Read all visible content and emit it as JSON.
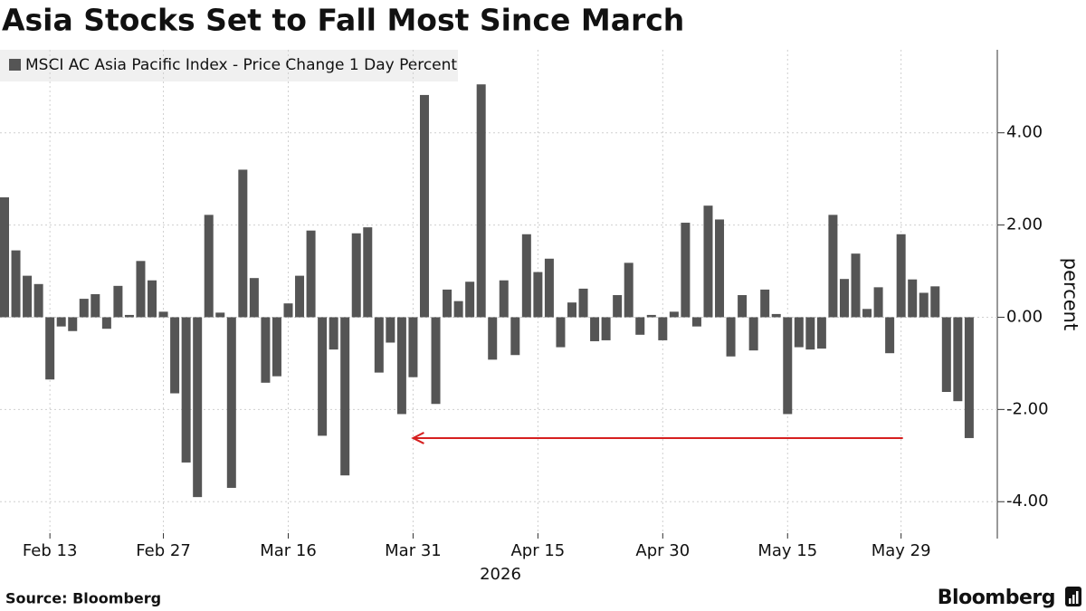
{
  "chart_data": {
    "type": "bar",
    "title": "Asia Stocks Set to Fall Most Since March",
    "y_label": "percent",
    "x_year": "2026",
    "source": "Source: Bloomberg",
    "brand": "Bloomberg",
    "categories": [
      null,
      null,
      null,
      null,
      "Feb 13",
      null,
      null,
      null,
      null,
      null,
      null,
      null,
      null,
      null,
      "Feb 27",
      null,
      null,
      null,
      null,
      null,
      null,
      null,
      null,
      null,
      null,
      "Mar 16",
      null,
      null,
      null,
      null,
      null,
      null,
      null,
      null,
      null,
      null,
      "Mar 31",
      null,
      null,
      null,
      null,
      null,
      null,
      null,
      null,
      null,
      null,
      "Apr 15",
      null,
      null,
      null,
      null,
      null,
      null,
      null,
      null,
      null,
      null,
      "Apr 30",
      null,
      null,
      null,
      null,
      null,
      null,
      null,
      null,
      null,
      null,
      "May 15",
      null,
      null,
      null,
      null,
      null,
      null,
      null,
      null,
      null,
      "May 29",
      null,
      null,
      null,
      null,
      null,
      null
    ],
    "series": [
      {
        "name": "MSCI AC Asia Pacific Index - Price Change 1 Day Percent",
        "color": "#555555",
        "values": [
          2.6,
          1.45,
          0.9,
          0.72,
          -1.35,
          -0.2,
          -0.3,
          0.4,
          0.5,
          -0.25,
          0.68,
          0.05,
          1.22,
          0.8,
          0.12,
          -1.65,
          -3.15,
          -3.9,
          2.22,
          0.1,
          -3.7,
          3.2,
          0.85,
          -1.42,
          -1.28,
          0.3,
          0.9,
          1.88,
          -2.57,
          -0.7,
          -3.43,
          1.82,
          1.95,
          -1.2,
          -0.55,
          -2.1,
          -1.3,
          4.82,
          -1.88,
          0.6,
          0.35,
          0.77,
          5.05,
          -0.92,
          0.8,
          -0.82,
          1.8,
          0.98,
          1.27,
          -0.65,
          0.32,
          0.62,
          -0.52,
          -0.5,
          0.48,
          1.18,
          -0.38,
          0.05,
          -0.5,
          0.12,
          2.05,
          -0.2,
          2.42,
          2.12,
          -0.85,
          0.48,
          -0.72,
          0.6,
          0.07,
          -2.1,
          -0.65,
          -0.7,
          -0.68,
          2.22,
          0.83,
          1.38,
          0.18,
          0.65,
          -0.78,
          1.8,
          0.82,
          0.53,
          0.67,
          -1.62,
          -1.82,
          -2.62
        ]
      }
    ],
    "ylim": [
      -4.8,
      5.8
    ],
    "yticks": [
      {
        "value": -4,
        "label": "-4.00"
      },
      {
        "value": -2,
        "label": "-2.00"
      },
      {
        "value": 0,
        "label": "0.00"
      },
      {
        "value": 2,
        "label": "2.00"
      },
      {
        "value": 4,
        "label": "4.00"
      }
    ],
    "grid": true,
    "arrow_color": "#d62020"
  }
}
